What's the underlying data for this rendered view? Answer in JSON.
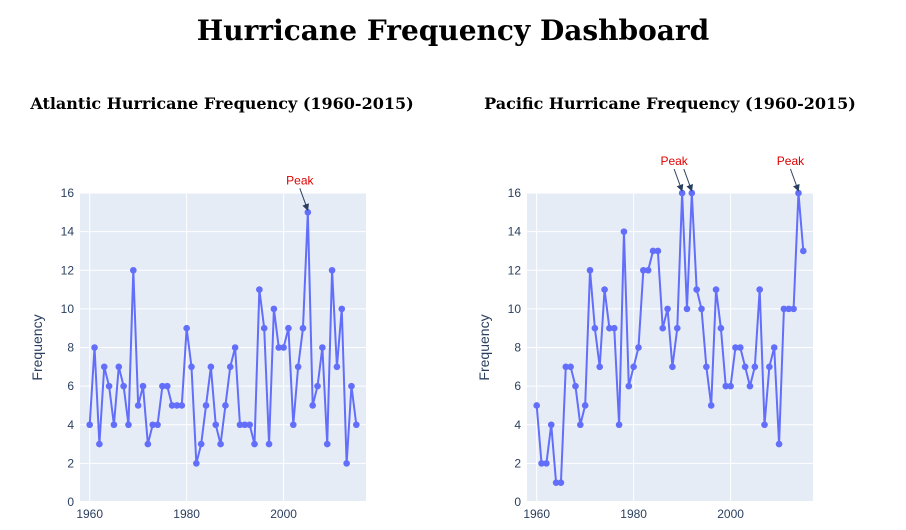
{
  "page": {
    "title": "Hurricane Frequency Dashboard"
  },
  "chart_data": [
    {
      "type": "line",
      "title": "Atlantic Hurricane Frequency (1960-2015)",
      "xlabel": "",
      "ylabel": "Frequency",
      "xlim": [
        1958,
        2017
      ],
      "ylim": [
        0,
        16
      ],
      "x_ticks": [
        1960,
        1980,
        2000
      ],
      "y_ticks": [
        0,
        2,
        4,
        6,
        8,
        10,
        12,
        14,
        16
      ],
      "grid": true,
      "line_color": "#636efa",
      "plot_bg": "#e5ecf6",
      "series": [
        {
          "x": [
            1960,
            1961,
            1962,
            1963,
            1964,
            1965,
            1966,
            1967,
            1968,
            1969,
            1970,
            1971,
            1972,
            1973,
            1974,
            1975,
            1976,
            1977,
            1978,
            1979,
            1980,
            1981,
            1982,
            1983,
            1984,
            1985,
            1986,
            1987,
            1988,
            1989,
            1990,
            1991,
            1992,
            1993,
            1994,
            1995,
            1996,
            1997,
            1998,
            1999,
            2000,
            2001,
            2002,
            2003,
            2004,
            2005,
            2006,
            2007,
            2008,
            2009,
            2010,
            2011,
            2012,
            2013,
            2014,
            2015
          ],
          "values": [
            4,
            8,
            3,
            7,
            6,
            4,
            7,
            6,
            4,
            12,
            5,
            6,
            3,
            4,
            4,
            6,
            6,
            5,
            5,
            5,
            9,
            7,
            2,
            3,
            5,
            7,
            4,
            3,
            5,
            7,
            8,
            4,
            4,
            4,
            3,
            11,
            9,
            3,
            10,
            8,
            8,
            9,
            4,
            7,
            9,
            15,
            5,
            6,
            8,
            3,
            12,
            7,
            10,
            2,
            6,
            4
          ]
        }
      ],
      "annotations": [
        {
          "x": 2005,
          "y": 15,
          "text": "Peak"
        }
      ]
    },
    {
      "type": "line",
      "title": "Pacific Hurricane Frequency (1960-2015)",
      "xlabel": "",
      "ylabel": "Frequency",
      "xlim": [
        1958,
        2017
      ],
      "ylim": [
        0,
        16
      ],
      "x_ticks": [
        1960,
        1980,
        2000
      ],
      "y_ticks": [
        0,
        2,
        4,
        6,
        8,
        10,
        12,
        14,
        16
      ],
      "grid": true,
      "line_color": "#636efa",
      "plot_bg": "#e5ecf6",
      "series": [
        {
          "x": [
            1960,
            1961,
            1962,
            1963,
            1964,
            1965,
            1966,
            1967,
            1968,
            1969,
            1970,
            1971,
            1972,
            1973,
            1974,
            1975,
            1976,
            1977,
            1978,
            1979,
            1980,
            1981,
            1982,
            1983,
            1984,
            1985,
            1986,
            1987,
            1988,
            1989,
            1990,
            1991,
            1992,
            1993,
            1994,
            1995,
            1996,
            1997,
            1998,
            1999,
            2000,
            2001,
            2002,
            2003,
            2004,
            2005,
            2006,
            2007,
            2008,
            2009,
            2010,
            2011,
            2012,
            2013,
            2014,
            2015
          ],
          "values": [
            5,
            2,
            2,
            4,
            1,
            1,
            7,
            7,
            6,
            4,
            5,
            12,
            9,
            7,
            11,
            9,
            9,
            4,
            14,
            6,
            7,
            8,
            12,
            12,
            13,
            13,
            9,
            10,
            7,
            9,
            16,
            10,
            16,
            11,
            10,
            7,
            5,
            11,
            9,
            6,
            6,
            8,
            8,
            7,
            6,
            7,
            11,
            4,
            7,
            8,
            3,
            10,
            10,
            10,
            16,
            13
          ]
        }
      ],
      "annotations": [
        {
          "x": 1990,
          "y": 16,
          "text": "Peak"
        },
        {
          "x": 1992,
          "y": 16,
          "text": "Peak"
        },
        {
          "x": 2014,
          "y": 16,
          "text": "Peak"
        }
      ]
    }
  ]
}
